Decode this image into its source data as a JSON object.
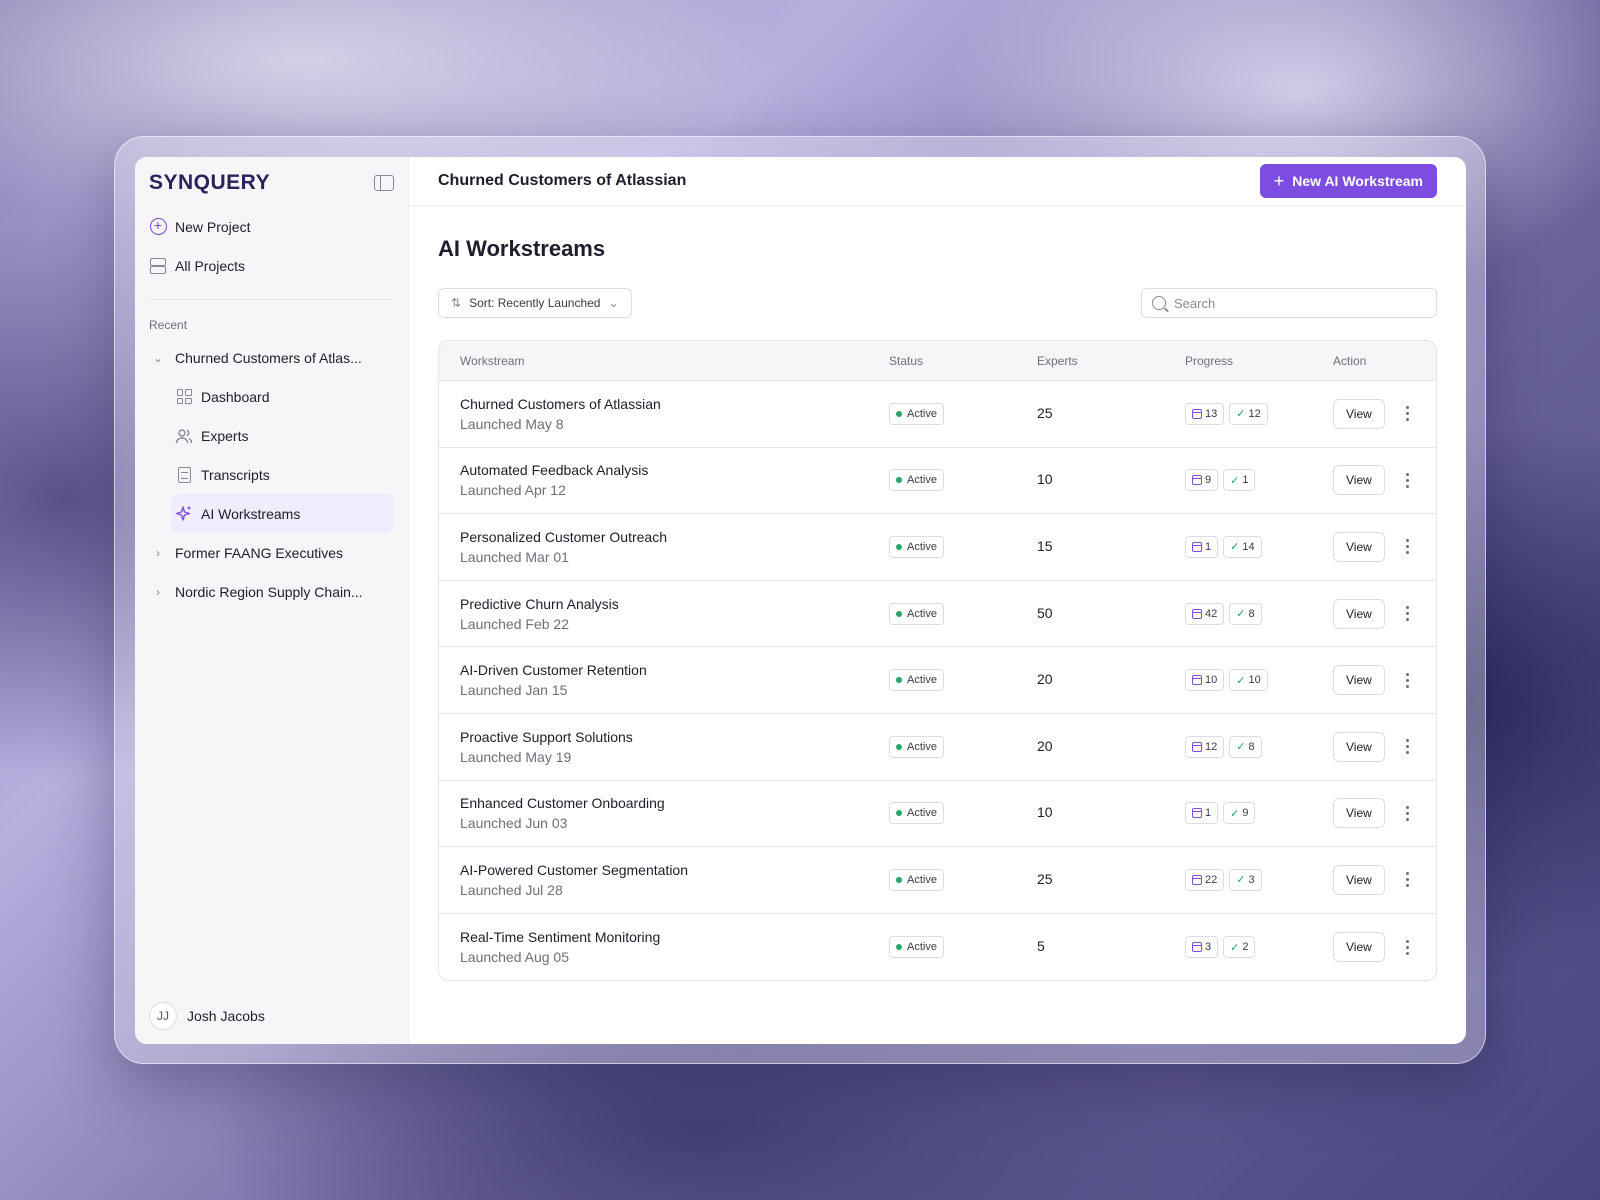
{
  "app": {
    "logo": "SYNQUERY",
    "accent": "#7c4de0"
  },
  "sidebar": {
    "new_project": "New Project",
    "all_projects": "All Projects",
    "recent_label": "Recent",
    "recent": [
      {
        "label": "Churned Customers of Atlas...",
        "expanded": true,
        "children": [
          {
            "label": "Dashboard",
            "icon": "dashboard-icon"
          },
          {
            "label": "Experts",
            "icon": "users-icon"
          },
          {
            "label": "Transcripts",
            "icon": "document-icon"
          },
          {
            "label": "AI Workstreams",
            "icon": "sparkle-icon",
            "active": true
          }
        ]
      },
      {
        "label": "Former FAANG Executives",
        "expanded": false
      },
      {
        "label": "Nordic Region Supply Chain...",
        "expanded": false
      }
    ],
    "user": {
      "initials": "JJ",
      "name": "Josh Jacobs"
    }
  },
  "header": {
    "title": "Churned Customers of Atlassian",
    "new_button": "New AI Workstream"
  },
  "main": {
    "heading": "AI Workstreams",
    "sort_label": "Sort: Recently Launched",
    "search_placeholder": "Search"
  },
  "table": {
    "columns": [
      "Workstream",
      "Status",
      "Experts",
      "Progress",
      "Action"
    ],
    "view_label": "View",
    "rows": [
      {
        "name": "Churned Customers of Atlassian",
        "date": "Launched May 8",
        "status": "Active",
        "experts": "25",
        "scheduled": "13",
        "completed": "12"
      },
      {
        "name": "Automated Feedback Analysis",
        "date": "Launched Apr 12",
        "status": "Active",
        "experts": "10",
        "scheduled": "9",
        "completed": "1"
      },
      {
        "name": "Personalized Customer Outreach",
        "date": "Launched Mar 01",
        "status": "Active",
        "experts": "15",
        "scheduled": "1",
        "completed": "14"
      },
      {
        "name": "Predictive Churn Analysis",
        "date": "Launched Feb 22",
        "status": "Active",
        "experts": "50",
        "scheduled": "42",
        "completed": "8"
      },
      {
        "name": "AI-Driven Customer Retention",
        "date": "Launched Jan 15",
        "status": "Active",
        "experts": "20",
        "scheduled": "10",
        "completed": "10"
      },
      {
        "name": "Proactive Support Solutions",
        "date": "Launched May 19",
        "status": "Active",
        "experts": "20",
        "scheduled": "12",
        "completed": "8"
      },
      {
        "name": "Enhanced Customer Onboarding",
        "date": "Launched Jun 03",
        "status": "Active",
        "experts": "10",
        "scheduled": "1",
        "completed": "9"
      },
      {
        "name": "AI-Powered Customer Segmentation",
        "date": "Launched Jul 28",
        "status": "Active",
        "experts": "25",
        "scheduled": "22",
        "completed": "3"
      },
      {
        "name": "Real-Time Sentiment Monitoring",
        "date": "Launched Aug 05",
        "status": "Active",
        "experts": "5",
        "scheduled": "3",
        "completed": "2"
      }
    ]
  }
}
